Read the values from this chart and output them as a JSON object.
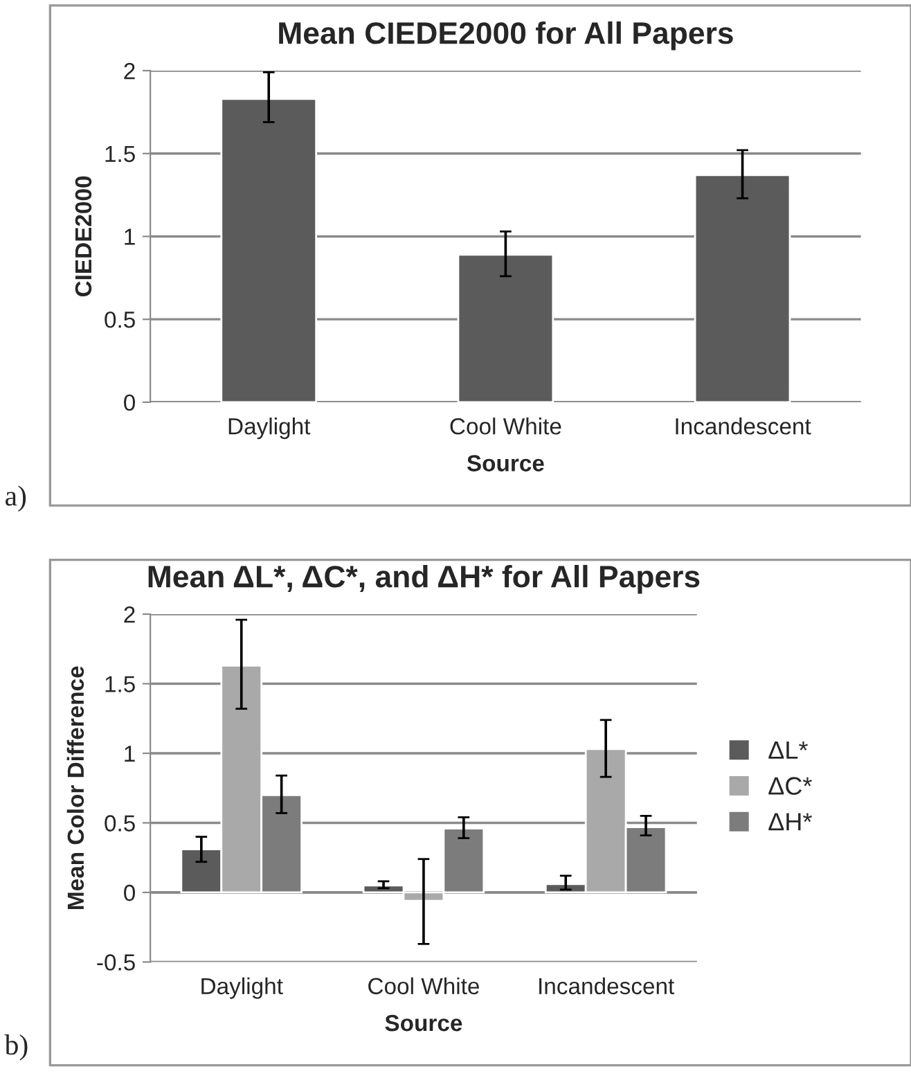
{
  "chart_data": [
    {
      "type": "bar",
      "title": "Mean CIEDE2000 for All Papers",
      "xlabel": "Source",
      "ylabel": "CIEDE2000",
      "categories": [
        "Daylight",
        "Cool White",
        "Incandescent"
      ],
      "series": [
        {
          "color": "#5a5b5a",
          "values": [
            1.83,
            0.89,
            1.37
          ],
          "errors": [
            [
              1.69,
              1.99
            ],
            [
              0.76,
              1.03
            ],
            [
              1.23,
              1.52
            ]
          ]
        }
      ],
      "ylim": [
        0,
        2
      ],
      "yticks": [
        0,
        0.5,
        1,
        1.5,
        2
      ],
      "grid": "y",
      "legend": false,
      "annotations": [
        "a)"
      ]
    },
    {
      "type": "bar",
      "title": "Mean ΔL*, ΔC*, and ΔH* for All Papers",
      "xlabel": "Source",
      "ylabel": "Mean Color Difference",
      "categories": [
        "Daylight",
        "Cool White",
        "Incandescent"
      ],
      "series": [
        {
          "name": "ΔL*",
          "color": "#5a5b5a",
          "values": [
            0.31,
            0.05,
            0.06
          ],
          "errors": [
            [
              0.22,
              0.4
            ],
            [
              0.03,
              0.08
            ],
            [
              0.02,
              0.12
            ]
          ]
        },
        {
          "name": "ΔC*",
          "color": "#a9a9a9",
          "values": [
            1.63,
            -0.06,
            1.03
          ],
          "errors": [
            [
              1.32,
              1.96
            ],
            [
              -0.37,
              0.24
            ],
            [
              0.83,
              1.24
            ]
          ]
        },
        {
          "name": "ΔH*",
          "color": "#7b7c7b",
          "values": [
            0.7,
            0.46,
            0.47
          ],
          "errors": [
            [
              0.57,
              0.84
            ],
            [
              0.39,
              0.54
            ],
            [
              0.41,
              0.55
            ]
          ]
        }
      ],
      "ylim": [
        -0.5,
        2
      ],
      "yticks": [
        -0.5,
        0,
        0.5,
        1,
        1.5,
        2
      ],
      "grid": "y",
      "legend": "right",
      "annotations": [
        "b)"
      ]
    }
  ]
}
